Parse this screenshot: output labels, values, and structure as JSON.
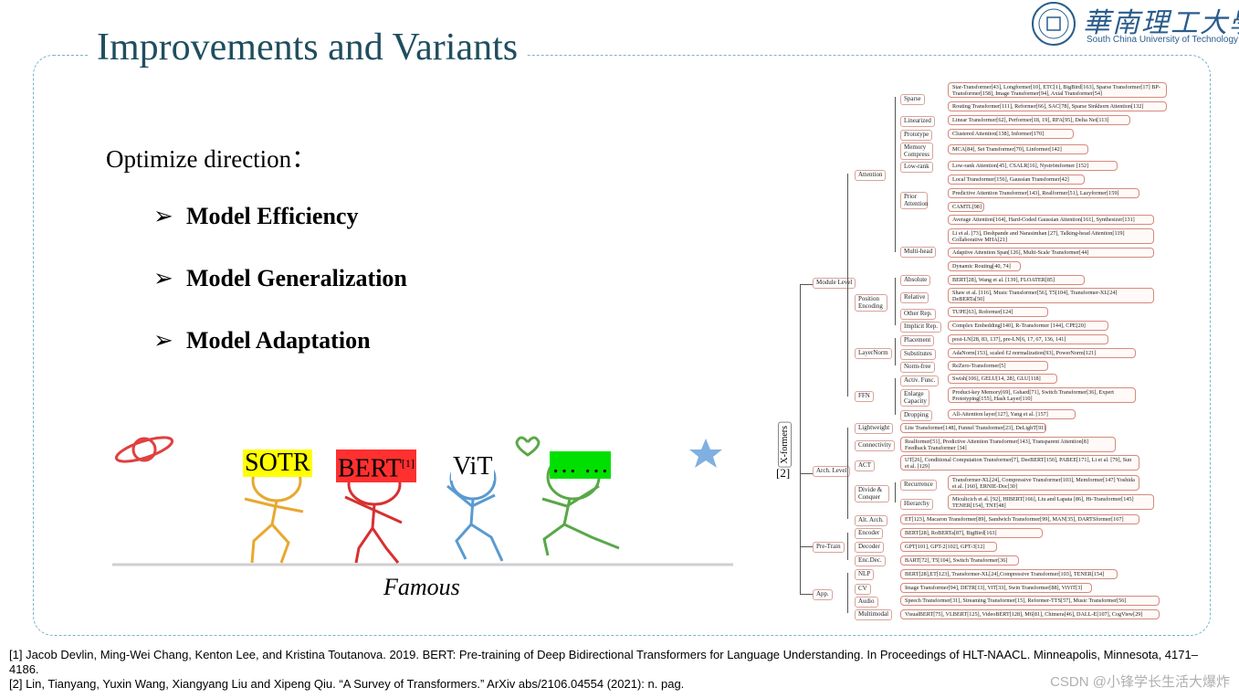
{
  "slide": {
    "title": "Improvements and Variants",
    "logo_cn": "華南理工大學",
    "logo_en": "South China University of Technology",
    "subhead": "Optimize direction：",
    "bullets": [
      "Model Efficiency",
      "Model Generalization",
      "Model Adaptation"
    ],
    "bullet_marker": "➢",
    "figure_caption": "Famous",
    "characters": [
      {
        "label": "SOTR",
        "sup": "",
        "bg": "#ffff00",
        "color": "#e8a830"
      },
      {
        "label": "BERT",
        "sup": "[1]",
        "bg": "#ff3030",
        "color": "#d83030"
      },
      {
        "label": "ViT",
        "sup": "",
        "bg": "#ffffff",
        "color": "#5a9ad0"
      },
      {
        "label": "… …",
        "sup": "",
        "bg": "#00e000",
        "color": "#58a848"
      }
    ],
    "references": [
      "[1] Jacob Devlin, Ming-Wei Chang, Kenton Lee, and Kristina Toutanova. 2019. BERT: Pre-training of Deep Bidirectional Transformers for Language Understanding. In Proceedings of HLT-NAACL. Minneapolis, Minnesota, 4171–4186.",
      "[2] Lin, Tianyang, Yuxin Wang, Xiangyang Liu and Xipeng Qiu. “A Survey of Transformers.” ArXiv abs/2106.04554 (2021): n. pag."
    ],
    "watermark": "CSDN @小锋学长生活大爆炸"
  },
  "taxonomy": {
    "root": "X-formers",
    "root_ref": "[2]",
    "level1": [
      "Module Level",
      "Arch. Level",
      "Pre-Train",
      "App."
    ],
    "level2": [
      "Attention",
      "Position Encoding",
      "LayerNorm",
      "FFN",
      "Lightweight",
      "Connectivity",
      "ACT",
      "Divide & Conquer",
      "Alt. Arch.",
      "Encoder",
      "Decoder",
      "Enc.Dec.",
      "NLP",
      "CV",
      "Audio",
      "Multimodal"
    ],
    "level3": [
      "Sparse",
      "Linearized",
      "Prototype",
      "Memory Compress",
      "Low-rank",
      "Prior Attention",
      "Multi-head",
      "Absolute",
      "Relative",
      "Other Rep.",
      "Implicit Rep.",
      "Placement",
      "Substitutes",
      "Norm-free",
      "Activ. Func.",
      "Enlarge Capacity",
      "Dropping",
      "Recurrence",
      "Hierarchy"
    ],
    "leaves": [
      "Star-Transformer[43], Longformer[10], ETC[1], BigBird[163], Sparse Transformer[17] BP-Transformer[158], Image Transformer[94], Axial Transformer[54]",
      "Routing Transformer[111], Reformer[66], SAC[78], Sparse Sinkhorn Attention[132]",
      "Linear Transformer[62], Performer[18, 19], RFA[95], Delta Net[113]",
      "Clustered Attention[138], Informer[170]",
      "MCA[84], Set Transformer[70], Linformer[142]",
      "Low-rank Attention[45], CSALR[16], Nyströmformer [152]",
      "Local Transformer[156], Gaussian Transformer[42]",
      "Predictive Attention Transformer[143], Realformer[51], Lazyformer[159]",
      "CAMTL[98]",
      "Average Attention[164], Hard-Coded Gaussian Attention[161], Synthesizer[131]",
      "Li et al. [73], Deshpande and Narasimhan [27], Talking-head Attention[119] Collaborative MHA[21]",
      "Adaptive Attention Span[126], Multi-Scale Transformer[44]",
      "Dynamic Routing[40, 74]",
      "BERT[28], Wang et al. [139], FLOATER[85]",
      "Shaw et al. [116], Music Transformer[56], T5[104], Transformer-XL[24] DeBERTa[50]",
      "TUPE[63], Roformer[124]",
      "Complex Embedding[140], R-Transformer [144], CPE[20]",
      "post-LN[28, 83, 137], pre-LN[6, 17, 67, 136, 141]",
      "AdaNorm[153], scaled ℓ2 normalization[93], PowerNorm[121]",
      "ReZero-Transformer[5]",
      "Swish[106], GELU[14, 28], GLU[118]",
      "Product-key Memory[69], Gshard[71], Switch Transformer[36], Expert Prototyping[155], Hash Layer[110]",
      "All-Attention layer[127], Yang et al. [157]",
      "Lite Transformer[148], Funnel Transformer[23], DeLighT[91]",
      "Realformer[51], Predictive Attention Transformer[143], Transparent Attention[8] Feedback Transformer [34]",
      "UT[26], Conditional Computation Transformer[7], DeeBERT[150], PABEE[171], Li et al. [79], Sun et al. [129]",
      "Transformer-XL[24], Compressive Transformer[103], Memformer[147] Yoshida et al. [160], ERNIE-Doc[30]",
      "Miculicich et al. [92], HIBERT[166], Liu and Lapata [86], Hi-Transformer[145] TENER[154], TNT[48]",
      "ET[123], Macaron Transformer[89], Sandwich Transformer[99], MAN[35], DARTSformer[167]",
      "BERT[28], RoBERTa[87], BigBird[163]",
      "GPT[101], GPT-2[102], GPT-3[12]",
      "BART[72], T5[104], Switch Transformer[36]",
      "BERT[28],ET[123], Transformer-XL[24],Compressive Transformer[103], TENER[154]",
      "Image Transformer[94], DETR[13], ViT[33], Swin Transformer[88], ViViT[3]",
      "Speech Transformer[31], Streaming Transformer[15], Reformer-TTS[57], Music Transformer[56]",
      "VisualBERT[75], VLBERT[125], VideoBERT[128], M6[81], Chimera[46], DALL-E[107], CogView[29]"
    ]
  }
}
